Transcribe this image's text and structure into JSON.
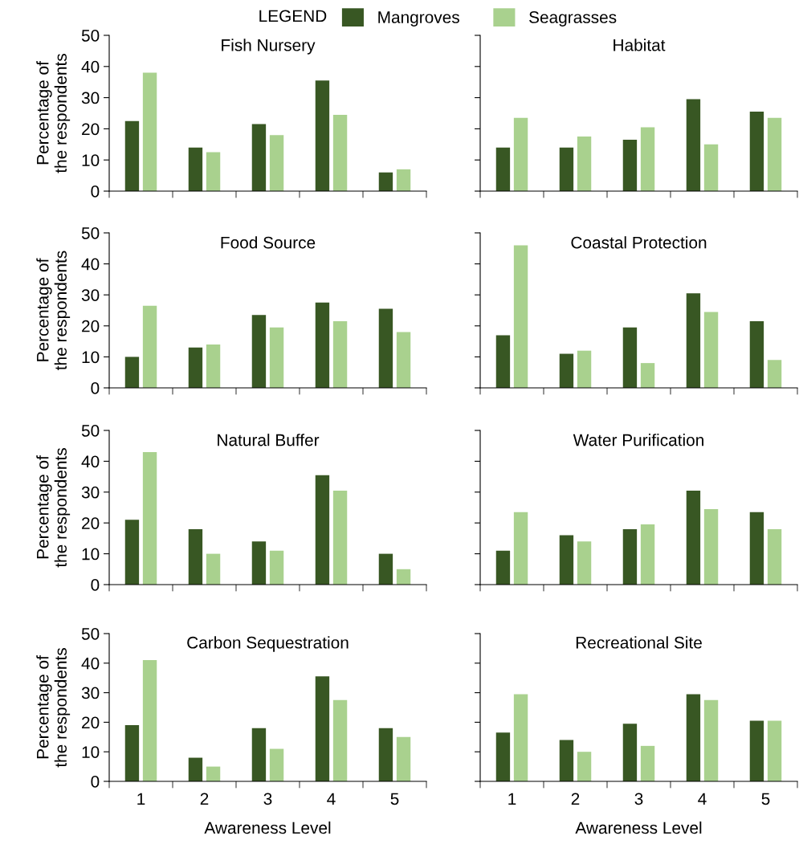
{
  "chart_data": [
    {
      "type": "bar",
      "title": "Fish Nursery",
      "ylabel": "Percentage of\nthe respondents",
      "legend_title": "LEGEND",
      "legend": "top",
      "categories": [
        "1",
        "2",
        "3",
        "4",
        "5"
      ],
      "ylim": [
        0,
        50
      ],
      "yticks": [
        0,
        10,
        20,
        30,
        40,
        50
      ],
      "tick_labels": "y",
      "grid": false,
      "series": [
        {
          "name": "Mangroves",
          "color": "#385723",
          "values": [
            22.5,
            14,
            21.5,
            35.5,
            6
          ]
        },
        {
          "name": "Seagrasses",
          "color": "#a9d18e",
          "values": [
            38,
            12.5,
            18,
            24.5,
            7
          ]
        }
      ]
    },
    {
      "type": "bar",
      "title": "Habitat",
      "categories": [
        "1",
        "2",
        "3",
        "4",
        "5"
      ],
      "ylim": [
        0,
        50
      ],
      "yticks": [
        0,
        10,
        20,
        30,
        40,
        50
      ],
      "tick_labels": false,
      "grid": false,
      "series": [
        {
          "color": "#385723",
          "values": [
            14,
            14,
            16.5,
            29.5,
            25.5
          ]
        },
        {
          "color": "#a9d18e",
          "values": [
            23.5,
            17.5,
            20.5,
            15,
            23.5
          ]
        }
      ]
    },
    {
      "type": "bar",
      "title": "Food Source",
      "ylabel": "Percentage of\nthe respondents",
      "categories": [
        "1",
        "2",
        "3",
        "4",
        "5"
      ],
      "ylim": [
        0,
        50
      ],
      "yticks": [
        0,
        10,
        20,
        30,
        40,
        50
      ],
      "tick_labels": "y",
      "grid": false,
      "series": [
        {
          "color": "#385723",
          "values": [
            10,
            13,
            23.5,
            27.5,
            25.5
          ]
        },
        {
          "color": "#a9d18e",
          "values": [
            26.5,
            14,
            19.5,
            21.5,
            18
          ]
        }
      ]
    },
    {
      "type": "bar",
      "title": "Coastal Protection",
      "categories": [
        "1",
        "2",
        "3",
        "4",
        "5"
      ],
      "ylim": [
        0,
        50
      ],
      "yticks": [
        0,
        10,
        20,
        30,
        40,
        50
      ],
      "tick_labels": false,
      "grid": false,
      "series": [
        {
          "color": "#385723",
          "values": [
            17,
            11,
            19.5,
            30.5,
            21.5
          ]
        },
        {
          "color": "#a9d18e",
          "values": [
            46,
            12,
            8,
            24.5,
            9
          ]
        }
      ]
    },
    {
      "type": "bar",
      "title": "Natural Buffer",
      "ylabel": "Percentage of\nthe respondents",
      "categories": [
        "1",
        "2",
        "3",
        "4",
        "5"
      ],
      "ylim": [
        0,
        50
      ],
      "yticks": [
        0,
        10,
        20,
        30,
        40,
        50
      ],
      "tick_labels": "y",
      "grid": false,
      "series": [
        {
          "color": "#385723",
          "values": [
            21,
            18,
            14,
            35.5,
            10
          ]
        },
        {
          "color": "#a9d18e",
          "values": [
            43,
            10,
            11,
            30.5,
            5
          ]
        }
      ]
    },
    {
      "type": "bar",
      "title": "Water Purification",
      "categories": [
        "1",
        "2",
        "3",
        "4",
        "5"
      ],
      "ylim": [
        0,
        50
      ],
      "yticks": [
        0,
        10,
        20,
        30,
        40,
        50
      ],
      "tick_labels": false,
      "grid": false,
      "series": [
        {
          "color": "#385723",
          "values": [
            11,
            16,
            18,
            30.5,
            23.5
          ]
        },
        {
          "color": "#a9d18e",
          "values": [
            23.5,
            14,
            19.5,
            24.5,
            18
          ]
        }
      ]
    },
    {
      "type": "bar",
      "title": "Carbon Sequestration",
      "ylabel": "Percentage of\nthe respondents",
      "xlabel": "Awareness Level",
      "categories": [
        "1",
        "2",
        "3",
        "4",
        "5"
      ],
      "ylim": [
        0,
        50
      ],
      "yticks": [
        0,
        10,
        20,
        30,
        40,
        50
      ],
      "grid": false,
      "series": [
        {
          "color": "#385723",
          "values": [
            19,
            8,
            18,
            35.5,
            18
          ]
        },
        {
          "color": "#a9d18e",
          "values": [
            41,
            5,
            11,
            27.5,
            15
          ]
        }
      ]
    },
    {
      "type": "bar",
      "title": "Recreational Site",
      "xlabel": "Awareness Level",
      "categories": [
        "1",
        "2",
        "3",
        "4",
        "5"
      ],
      "ylim": [
        0,
        50
      ],
      "yticks": [
        0,
        10,
        20,
        30,
        40,
        50
      ],
      "tick_labels": "x",
      "grid": false,
      "series": [
        {
          "color": "#385723",
          "values": [
            16.5,
            14,
            19.5,
            29.5,
            20.5
          ]
        },
        {
          "color": "#a9d18e",
          "values": [
            29.5,
            10,
            12,
            27.5,
            20.5
          ]
        }
      ]
    }
  ]
}
